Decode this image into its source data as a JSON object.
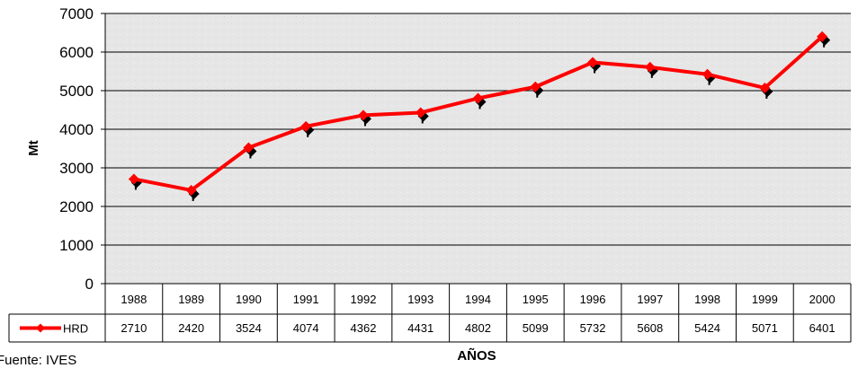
{
  "chart_data": {
    "type": "line",
    "categories": [
      "1988",
      "1989",
      "1990",
      "1991",
      "1992",
      "1993",
      "1994",
      "1995",
      "1996",
      "1997",
      "1998",
      "1999",
      "2000"
    ],
    "series": [
      {
        "name": "HRD",
        "values": [
          2710,
          2420,
          3524,
          4074,
          4362,
          4431,
          4802,
          5099,
          5732,
          5608,
          5424,
          5071,
          6401
        ],
        "color": "#ff0000",
        "marker": "diamond",
        "marker_color": "#000000"
      }
    ],
    "xlabel": "AÑOS",
    "ylabel": "Mt",
    "ylim": [
      0,
      7000
    ],
    "yticks": [
      "0",
      "1000",
      "2000",
      "3000",
      "4000",
      "5000",
      "6000",
      "7000"
    ],
    "grid": true,
    "data_table": true,
    "plot_background": "#e6e6e6"
  },
  "footer": {
    "source": "Fuente: IVES"
  }
}
